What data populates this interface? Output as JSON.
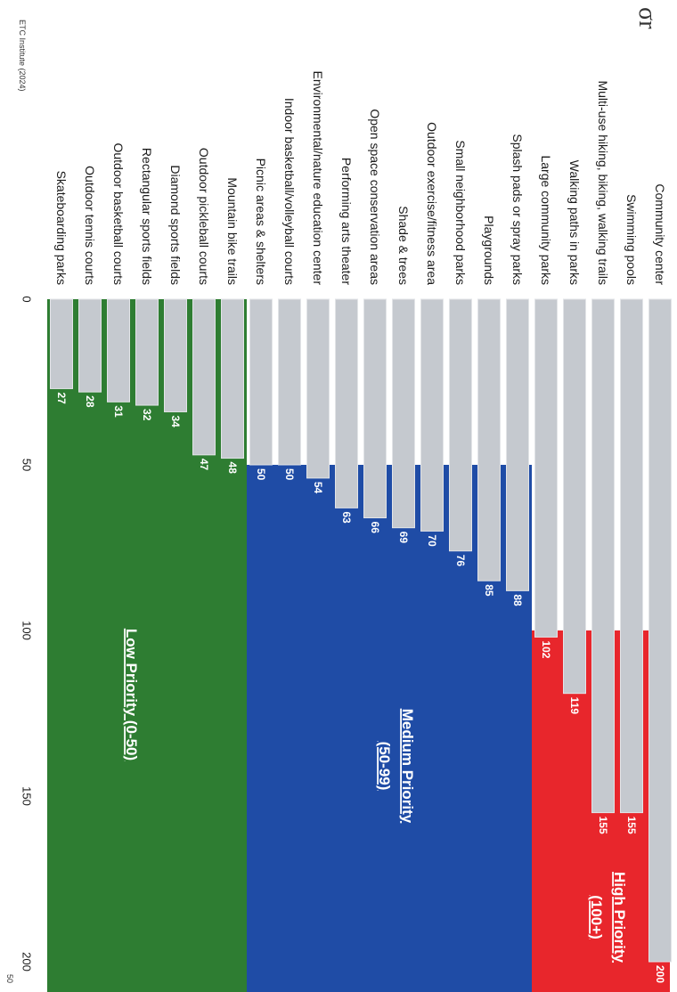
{
  "header_fragment": "σr",
  "footer": {
    "source": "ETC Institute (2024)",
    "corner": "50"
  },
  "colors": {
    "bar": "#c5c9cf",
    "bar_edge": "#e2e4e7",
    "high": "#e8262c",
    "medium": "#1f4ca6",
    "low": "#2e7d32",
    "zone_text": "#ffffff"
  },
  "chart_data": {
    "type": "bar",
    "orientation": "horizontal",
    "categories": [
      "Community center",
      "Swimming pools",
      "Multi-use hiking, biking, walking trails",
      "Walking paths in parks",
      "Large community parks",
      "Splash pads or spray parks",
      "Playgrounds",
      "Small neighborhood parks",
      "Outdoor exercise/fitness area",
      "Shade & trees",
      "Open space conservation areas",
      "Performing arts theater",
      "Environmental/nature education center",
      "Indoor basketball/volleyball courts",
      "Picnic areas & shelters",
      "Mountain bike trails",
      "Outdoor pickleball courts",
      "Diamond sports fields",
      "Rectangular sports fields",
      "Outdoor basketball courts",
      "Outdoor tennis courts",
      "Skateboarding parks"
    ],
    "values": [
      200,
      155,
      155,
      119,
      102,
      88,
      85,
      76,
      70,
      69,
      66,
      63,
      54,
      50,
      50,
      48,
      47,
      34,
      32,
      31,
      28,
      27
    ],
    "value_labels": [
      "200",
      "155",
      "155",
      "119",
      "102",
      "88",
      "85",
      "76",
      "70",
      "69",
      "66",
      "63",
      "54",
      "50",
      "50",
      "48",
      "47",
      "34",
      "32",
      "31",
      "28",
      "27"
    ],
    "x_ticks": [
      "0",
      "50",
      "100",
      "150",
      "200"
    ],
    "x_tick_values": [
      0,
      50,
      100,
      150,
      200
    ],
    "xlim": [
      0,
      200
    ],
    "zones": [
      {
        "name": "High Priority",
        "range_label": "(100+)",
        "min": 100,
        "color": "#e8262c"
      },
      {
        "name": "Medium Priority",
        "range_label": "(50-99)",
        "min": 50,
        "color": "#1f4ca6"
      },
      {
        "name": "Low Priority (0-50)",
        "range_label": "",
        "min": 0,
        "color": "#2e7d32"
      }
    ],
    "rotated": "90deg clockwise",
    "grid": false,
    "legend": "none"
  }
}
